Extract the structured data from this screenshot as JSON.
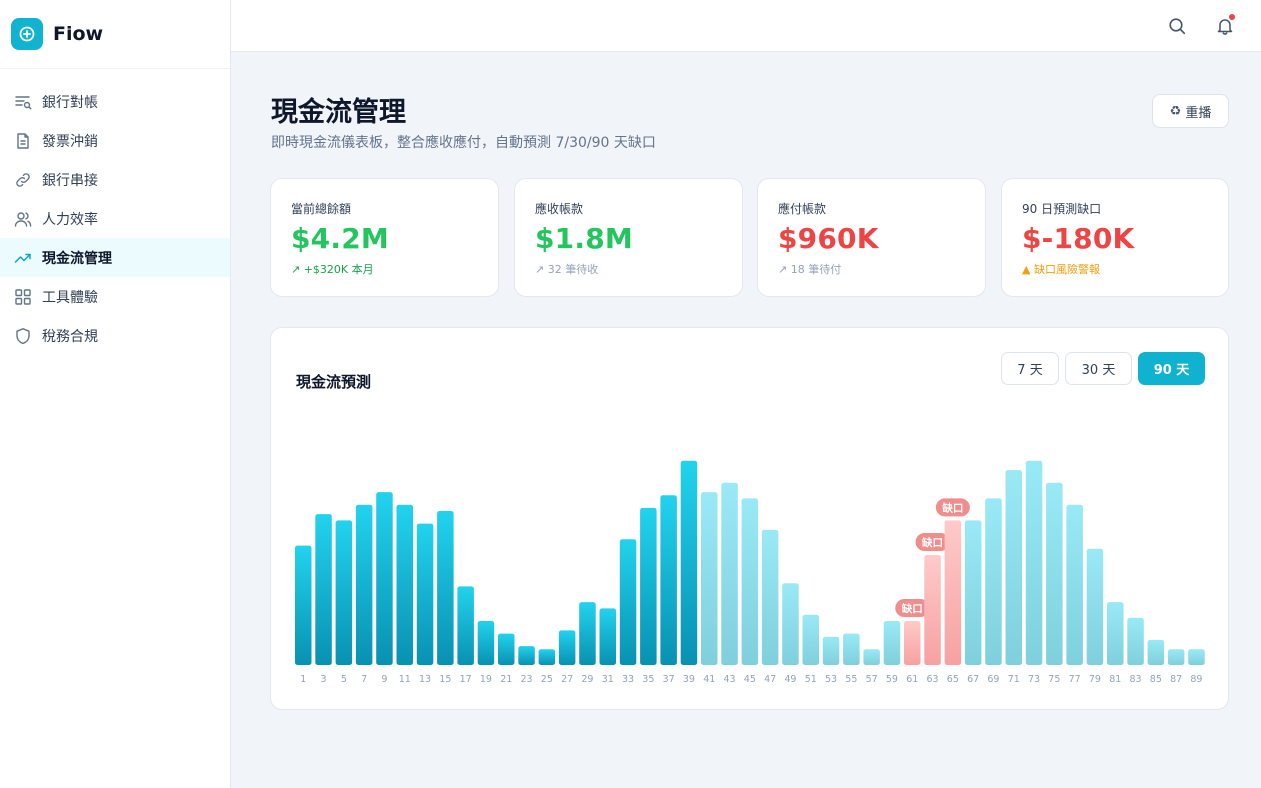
{
  "brand": {
    "name": "Fiow"
  },
  "sidebar": {
    "items": [
      {
        "label": "銀行對帳",
        "icon": "list-search-icon",
        "active": false
      },
      {
        "label": "發票沖銷",
        "icon": "document-icon",
        "active": false
      },
      {
        "label": "銀行串接",
        "icon": "link-icon",
        "active": false
      },
      {
        "label": "人力效率",
        "icon": "users-icon",
        "active": false
      },
      {
        "label": "現金流管理",
        "icon": "trending-up-icon",
        "active": true
      },
      {
        "label": "工具體驗",
        "icon": "grid-icon",
        "active": false
      },
      {
        "label": "稅務合規",
        "icon": "shield-icon",
        "active": false
      }
    ]
  },
  "topbar": {
    "search_icon": "search-icon",
    "bell_icon": "bell-icon",
    "has_notification": true
  },
  "header": {
    "title": "現金流管理",
    "subtitle": "即時現金流儀表板，整合應收應付，自動預測 7/30/90 天缺口",
    "replay_icon": "♻",
    "replay_label": "重播"
  },
  "kpis": [
    {
      "label": "當前總餘額",
      "value": "$4.2M",
      "note": "↗ +$320K 本月",
      "value_color": "#22c55e",
      "note_color": "#16a34a"
    },
    {
      "label": "應收帳款",
      "value": "$1.8M",
      "note": "↗ 32 筆待收",
      "value_color": "#22c55e",
      "note_color": "#94a3b8"
    },
    {
      "label": "應付帳款",
      "value": "$960K",
      "note": "↗ 18 筆待付",
      "value_color": "#ef4444",
      "note_color": "#94a3b8"
    },
    {
      "label": "90 日預測缺口",
      "value": "$-180K",
      "note": "▲ 缺口風險警報",
      "value_color": "#ef4444",
      "note_color": "#f59e0b"
    }
  ],
  "chart": {
    "title": "現金流預測",
    "ranges": [
      {
        "label": "7 天",
        "active": false
      },
      {
        "label": "30 天",
        "active": false
      },
      {
        "label": "90 天",
        "active": true
      }
    ]
  },
  "chart_data": {
    "type": "bar",
    "categories": [
      "1",
      "3",
      "5",
      "7",
      "9",
      "11",
      "13",
      "15",
      "17",
      "19",
      "21",
      "23",
      "25",
      "27",
      "29",
      "31",
      "33",
      "35",
      "37",
      "39",
      "41",
      "43",
      "45",
      "47",
      "49",
      "51",
      "53",
      "55",
      "57",
      "59",
      "61",
      "63",
      "65",
      "67",
      "69",
      "71",
      "73",
      "75",
      "77",
      "79",
      "81",
      "83",
      "85",
      "87",
      "89"
    ],
    "values": [
      38,
      48,
      46,
      51,
      55,
      51,
      45,
      49,
      25,
      14,
      10,
      6,
      5,
      11,
      20,
      18,
      40,
      50,
      54,
      65,
      55,
      58,
      53,
      43,
      26,
      16,
      9,
      10,
      5,
      14,
      14,
      35,
      46,
      46,
      53,
      62,
      65,
      58,
      51,
      37,
      20,
      15,
      8,
      5,
      5
    ],
    "forecast_start_index": 20,
    "gap_indices": [
      30,
      31,
      32
    ],
    "gap_label": "缺口",
    "ylim": [
      0,
      70
    ],
    "colors": {
      "actual": "#12b3d1",
      "forecast": "#8ee3f2",
      "gap": "#fca5a5",
      "gap_badge": "#f08d8d",
      "tick": "#94a3b8"
    }
  }
}
